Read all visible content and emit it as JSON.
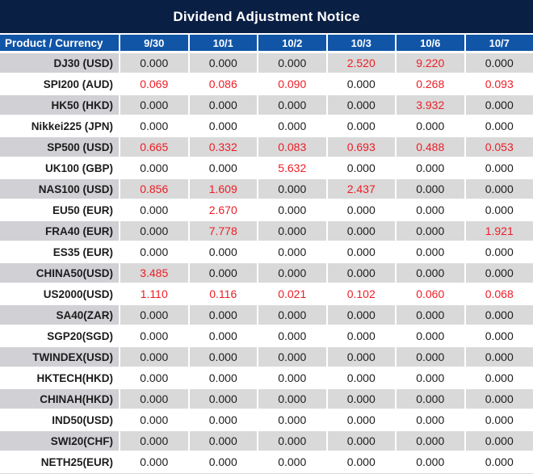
{
  "title": "Dividend Adjustment Notice",
  "colors": {
    "title_bg": "#0a1f44",
    "header_bg": "#1155a7",
    "stripe_bg": "#d9d9d9",
    "stripe_product_bg": "#d0d0d5",
    "value_red": "#ee1c25",
    "value_black": "#1c1c1c"
  },
  "chart_data": {
    "type": "table",
    "title": "Dividend Adjustment Notice",
    "columns": [
      "Product / Currency",
      "9/30",
      "10/1",
      "10/2",
      "10/3",
      "10/6",
      "10/7"
    ],
    "rows": [
      [
        "DJ30 (USD)",
        "0.000",
        "0.000",
        "0.000",
        "2.520",
        "9.220",
        "0.000"
      ],
      [
        "SPI200 (AUD)",
        "0.069",
        "0.086",
        "0.090",
        "0.000",
        "0.268",
        "0.093"
      ],
      [
        "HK50 (HKD)",
        "0.000",
        "0.000",
        "0.000",
        "0.000",
        "3.932",
        "0.000"
      ],
      [
        "Nikkei225 (JPN)",
        "0.000",
        "0.000",
        "0.000",
        "0.000",
        "0.000",
        "0.000"
      ],
      [
        "SP500 (USD)",
        "0.665",
        "0.332",
        "0.083",
        "0.693",
        "0.488",
        "0.053"
      ],
      [
        "UK100 (GBP)",
        "0.000",
        "0.000",
        "5.632",
        "0.000",
        "0.000",
        "0.000"
      ],
      [
        "NAS100 (USD)",
        "0.856",
        "1.609",
        "0.000",
        "2.437",
        "0.000",
        "0.000"
      ],
      [
        "EU50 (EUR)",
        "0.000",
        "2.670",
        "0.000",
        "0.000",
        "0.000",
        "0.000"
      ],
      [
        "FRA40 (EUR)",
        "0.000",
        "7.778",
        "0.000",
        "0.000",
        "0.000",
        "1.921"
      ],
      [
        "ES35 (EUR)",
        "0.000",
        "0.000",
        "0.000",
        "0.000",
        "0.000",
        "0.000"
      ],
      [
        "CHINA50(USD)",
        "3.485",
        "0.000",
        "0.000",
        "0.000",
        "0.000",
        "0.000"
      ],
      [
        "US2000(USD)",
        "1.110",
        "0.116",
        "0.021",
        "0.102",
        "0.060",
        "0.068"
      ],
      [
        "SA40(ZAR)",
        "0.000",
        "0.000",
        "0.000",
        "0.000",
        "0.000",
        "0.000"
      ],
      [
        "SGP20(SGD)",
        "0.000",
        "0.000",
        "0.000",
        "0.000",
        "0.000",
        "0.000"
      ],
      [
        "TWINDEX(USD)",
        "0.000",
        "0.000",
        "0.000",
        "0.000",
        "0.000",
        "0.000"
      ],
      [
        "HKTECH(HKD)",
        "0.000",
        "0.000",
        "0.000",
        "0.000",
        "0.000",
        "0.000"
      ],
      [
        "CHINAH(HKD)",
        "0.000",
        "0.000",
        "0.000",
        "0.000",
        "0.000",
        "0.000"
      ],
      [
        "IND50(USD)",
        "0.000",
        "0.000",
        "0.000",
        "0.000",
        "0.000",
        "0.000"
      ],
      [
        "SWI20(CHF)",
        "0.000",
        "0.000",
        "0.000",
        "0.000",
        "0.000",
        "0.000"
      ],
      [
        "NETH25(EUR)",
        "0.000",
        "0.000",
        "0.000",
        "0.000",
        "0.000",
        "0.000"
      ]
    ],
    "layout": {
      "zero_value_color_rule": "values equal to 0.000 are black, all other values are red",
      "striped_rows": "odd rows (1st, 3rd, ...) light gray, even rows white",
      "legend": "none",
      "grid": "white 2px separators between cells"
    }
  }
}
